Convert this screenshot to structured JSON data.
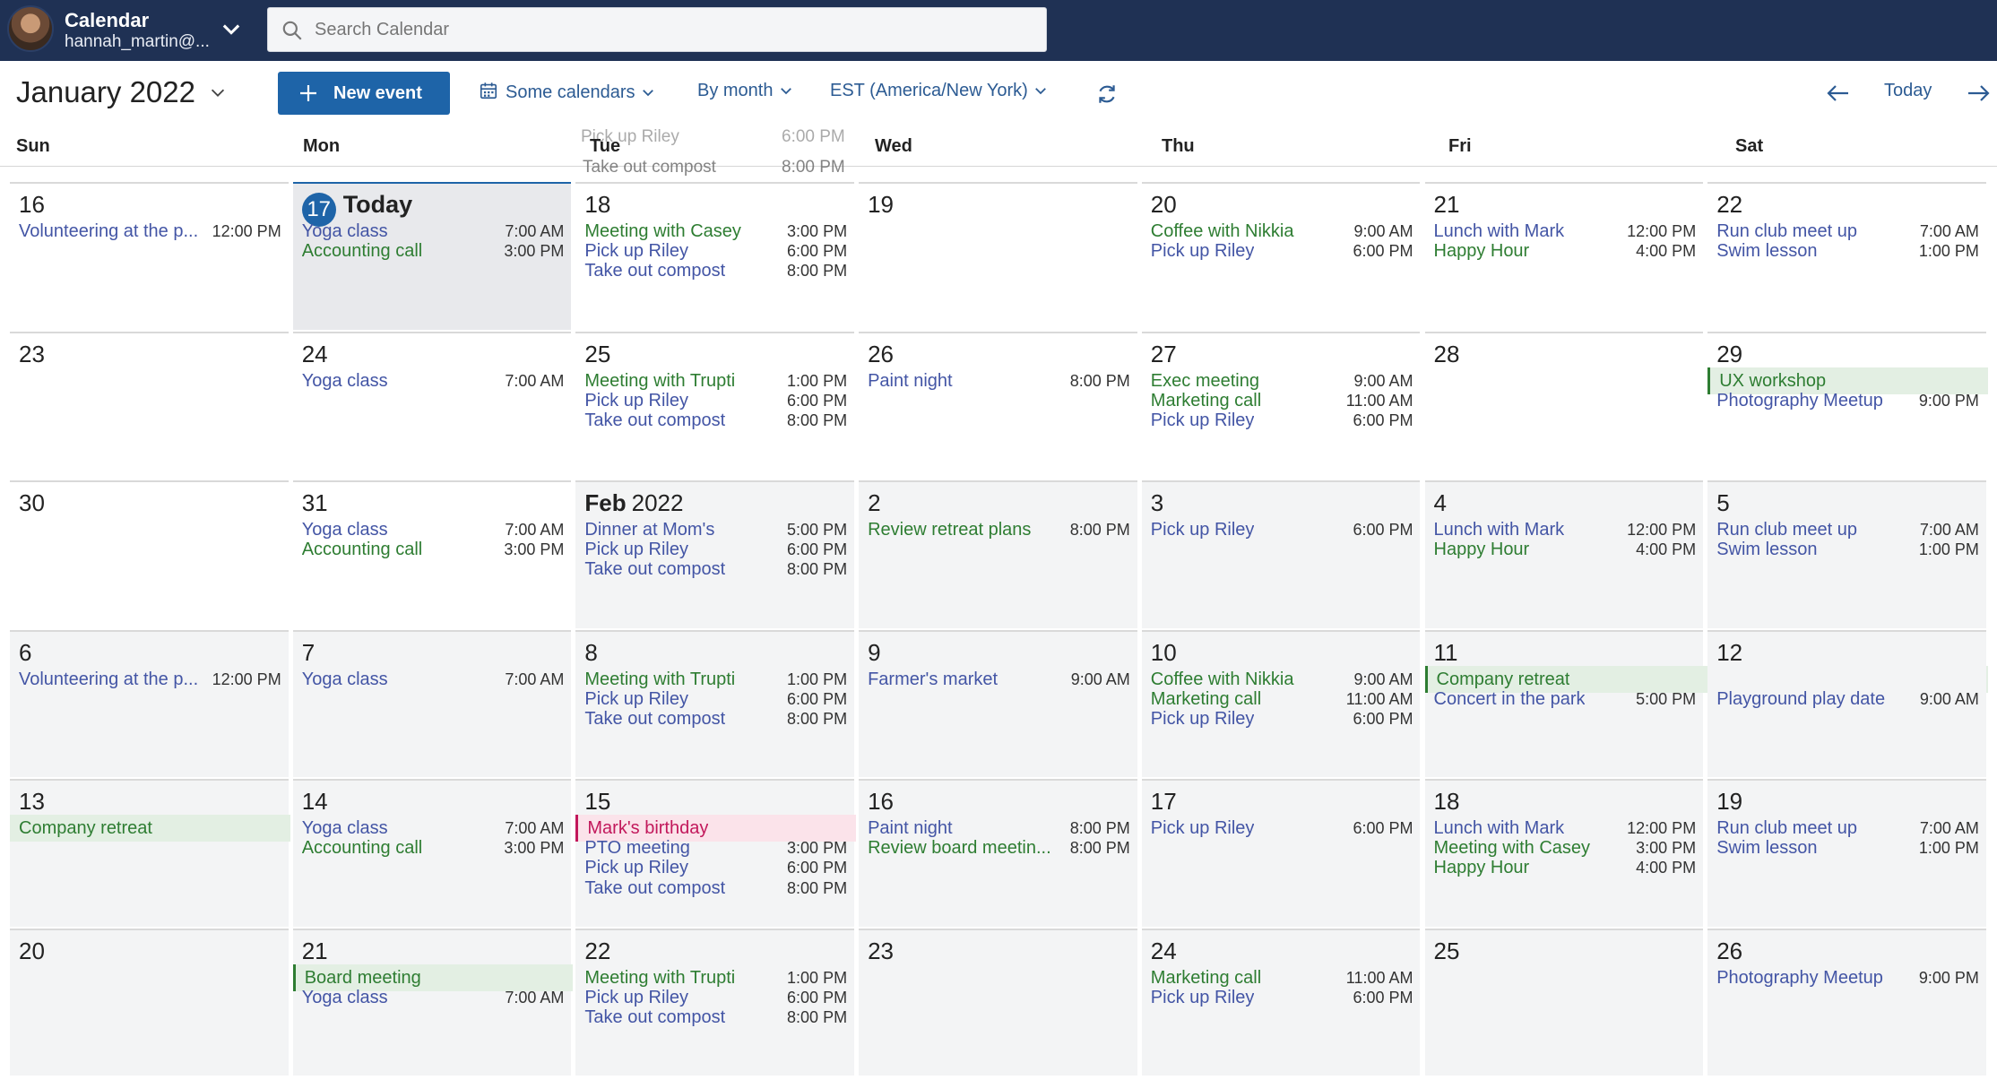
{
  "header": {
    "app_name": "Calendar",
    "user": "hannah_martin@...",
    "search_placeholder": "Search Calendar"
  },
  "toolbar": {
    "month_name": "January",
    "year": "2022",
    "new_event_label": "New event",
    "calendars_label": "Some calendars",
    "view_label": "By month",
    "timezone_label": "EST (America/New York)",
    "today_label": "Today"
  },
  "day_headers": [
    "Sun",
    "Mon",
    "Tue",
    "Wed",
    "Thu",
    "Fri",
    "Sat"
  ],
  "ghost_row": [
    {
      "title": "Pick up Riley",
      "time": "6:00 PM"
    },
    {
      "title": "Take out compost",
      "time": "8:00 PM"
    }
  ],
  "weeks": [
    [
      {
        "day": "16",
        "events": [
          {
            "title": "Volunteering at the p...",
            "time": "12:00 PM",
            "color": "blue"
          }
        ]
      },
      {
        "day": "17",
        "today": true,
        "today_label": "Today",
        "events": [
          {
            "title": "Yoga class",
            "time": "7:00 AM",
            "color": "blue"
          },
          {
            "title": "Accounting call",
            "time": "3:00 PM",
            "color": "green"
          }
        ]
      },
      {
        "day": "18",
        "events": [
          {
            "title": "Meeting with Casey",
            "time": "3:00 PM",
            "color": "green"
          },
          {
            "title": "Pick up Riley",
            "time": "6:00 PM",
            "color": "blue"
          },
          {
            "title": "Take out compost",
            "time": "8:00 PM",
            "color": "blue"
          }
        ]
      },
      {
        "day": "19",
        "events": []
      },
      {
        "day": "20",
        "events": [
          {
            "title": "Coffee with Nikkia",
            "time": "9:00 AM",
            "color": "green"
          },
          {
            "title": "Pick up Riley",
            "time": "6:00 PM",
            "color": "blue"
          }
        ]
      },
      {
        "day": "21",
        "events": [
          {
            "title": "Lunch with Mark",
            "time": "12:00 PM",
            "color": "blue"
          },
          {
            "title": "Happy Hour",
            "time": "4:00 PM",
            "color": "green"
          }
        ]
      },
      {
        "day": "22",
        "events": [
          {
            "title": "Run club meet up",
            "time": "7:00 AM",
            "color": "blue"
          },
          {
            "title": "Swim lesson",
            "time": "1:00 PM",
            "color": "blue"
          }
        ]
      }
    ],
    [
      {
        "day": "23",
        "events": []
      },
      {
        "day": "24",
        "events": [
          {
            "title": "Yoga class",
            "time": "7:00 AM",
            "color": "blue"
          }
        ]
      },
      {
        "day": "25",
        "events": [
          {
            "title": "Meeting with Trupti",
            "time": "1:00 PM",
            "color": "green"
          },
          {
            "title": "Pick up Riley",
            "time": "6:00 PM",
            "color": "blue"
          },
          {
            "title": "Take out compost",
            "time": "8:00 PM",
            "color": "blue"
          }
        ]
      },
      {
        "day": "26",
        "events": [
          {
            "title": "Paint night",
            "time": "8:00 PM",
            "color": "blue"
          }
        ]
      },
      {
        "day": "27",
        "events": [
          {
            "title": "Exec meeting",
            "time": "9:00 AM",
            "color": "green"
          },
          {
            "title": "Marketing call",
            "time": "11:00 AM",
            "color": "green"
          },
          {
            "title": "Pick up Riley",
            "time": "6:00 PM",
            "color": "blue"
          }
        ]
      },
      {
        "day": "28",
        "events": []
      },
      {
        "day": "29",
        "events": [
          {
            "title": "UX workshop",
            "time": "",
            "color": "green",
            "allday": true
          },
          {
            "title": "Photography Meetup",
            "time": "9:00 PM",
            "color": "blue"
          }
        ]
      }
    ],
    [
      {
        "day": "30",
        "events": []
      },
      {
        "day": "31",
        "events": [
          {
            "title": "Yoga class",
            "time": "7:00 AM",
            "color": "blue"
          },
          {
            "title": "Accounting call",
            "time": "3:00 PM",
            "color": "green"
          }
        ]
      },
      {
        "day": "Feb",
        "day_suffix": "2022",
        "gray": true,
        "events": [
          {
            "title": "Dinner at Mom's",
            "time": "5:00 PM",
            "color": "blue"
          },
          {
            "title": "Pick up Riley",
            "time": "6:00 PM",
            "color": "blue"
          },
          {
            "title": "Take out compost",
            "time": "8:00 PM",
            "color": "blue"
          }
        ]
      },
      {
        "day": "2",
        "gray": true,
        "events": [
          {
            "title": "Review retreat plans",
            "time": "8:00 PM",
            "color": "green"
          }
        ]
      },
      {
        "day": "3",
        "gray": true,
        "events": [
          {
            "title": "Pick up Riley",
            "time": "6:00 PM",
            "color": "blue"
          }
        ]
      },
      {
        "day": "4",
        "gray": true,
        "events": [
          {
            "title": "Lunch with Mark",
            "time": "12:00 PM",
            "color": "blue"
          },
          {
            "title": "Happy Hour",
            "time": "4:00 PM",
            "color": "green"
          }
        ]
      },
      {
        "day": "5",
        "gray": true,
        "events": [
          {
            "title": "Run club meet up",
            "time": "7:00 AM",
            "color": "blue"
          },
          {
            "title": "Swim lesson",
            "time": "1:00 PM",
            "color": "blue"
          }
        ]
      }
    ],
    [
      {
        "day": "6",
        "gray": true,
        "events": [
          {
            "title": "Volunteering at the p...",
            "time": "12:00 PM",
            "color": "blue"
          }
        ]
      },
      {
        "day": "7",
        "gray": true,
        "events": [
          {
            "title": "Yoga class",
            "time": "7:00 AM",
            "color": "blue"
          }
        ]
      },
      {
        "day": "8",
        "gray": true,
        "events": [
          {
            "title": "Meeting with Trupti",
            "time": "1:00 PM",
            "color": "green"
          },
          {
            "title": "Pick up Riley",
            "time": "6:00 PM",
            "color": "blue"
          },
          {
            "title": "Take out compost",
            "time": "8:00 PM",
            "color": "blue"
          }
        ]
      },
      {
        "day": "9",
        "gray": true,
        "events": [
          {
            "title": "Farmer's market",
            "time": "9:00 AM",
            "color": "blue"
          }
        ]
      },
      {
        "day": "10",
        "gray": true,
        "events": [
          {
            "title": "Coffee with Nikkia",
            "time": "9:00 AM",
            "color": "green"
          },
          {
            "title": "Marketing call",
            "time": "11:00 AM",
            "color": "green"
          },
          {
            "title": "Pick up Riley",
            "time": "6:00 PM",
            "color": "blue"
          }
        ]
      },
      {
        "day": "11",
        "gray": true,
        "events": [
          {
            "title": "Company retreat",
            "time": "",
            "color": "green",
            "allday": true,
            "span2": true
          },
          {
            "title": "Concert in the park",
            "time": "5:00 PM",
            "color": "blue"
          }
        ]
      },
      {
        "day": "12",
        "gray": true,
        "events": [
          {
            "title": "",
            "time": "",
            "color": "none",
            "spacer": true
          },
          {
            "title": "Playground play date",
            "time": "9:00 AM",
            "color": "blue"
          }
        ]
      }
    ],
    [
      {
        "day": "13",
        "gray": true,
        "events": [
          {
            "title": "Company retreat",
            "time": "",
            "color": "green",
            "allday": true,
            "noborder": true
          }
        ]
      },
      {
        "day": "14",
        "gray": true,
        "events": [
          {
            "title": "Yoga class",
            "time": "7:00 AM",
            "color": "blue"
          },
          {
            "title": "Accounting call",
            "time": "3:00 PM",
            "color": "green"
          }
        ]
      },
      {
        "day": "15",
        "gray": true,
        "events": [
          {
            "title": "Mark's birthday",
            "time": "",
            "color": "pink",
            "allday": true
          },
          {
            "title": "PTO meeting",
            "time": "3:00 PM",
            "color": "blue"
          },
          {
            "title": "Pick up Riley",
            "time": "6:00 PM",
            "color": "blue"
          },
          {
            "title": "Take out compost",
            "time": "8:00 PM",
            "color": "blue"
          }
        ]
      },
      {
        "day": "16",
        "gray": true,
        "events": [
          {
            "title": "Paint night",
            "time": "8:00 PM",
            "color": "blue"
          },
          {
            "title": "Review board meetin...",
            "time": "8:00 PM",
            "color": "green"
          }
        ]
      },
      {
        "day": "17",
        "gray": true,
        "events": [
          {
            "title": "Pick up Riley",
            "time": "6:00 PM",
            "color": "blue"
          }
        ]
      },
      {
        "day": "18",
        "gray": true,
        "events": [
          {
            "title": "Lunch with Mark",
            "time": "12:00 PM",
            "color": "blue"
          },
          {
            "title": "Meeting with Casey",
            "time": "3:00 PM",
            "color": "green"
          },
          {
            "title": "Happy Hour",
            "time": "4:00 PM",
            "color": "green"
          }
        ]
      },
      {
        "day": "19",
        "gray": true,
        "events": [
          {
            "title": "Run club meet up",
            "time": "7:00 AM",
            "color": "blue"
          },
          {
            "title": "Swim lesson",
            "time": "1:00 PM",
            "color": "blue"
          }
        ]
      }
    ],
    [
      {
        "day": "20",
        "gray": true,
        "events": []
      },
      {
        "day": "21",
        "gray": true,
        "events": [
          {
            "title": "Board meeting",
            "time": "",
            "color": "green",
            "allday": true
          },
          {
            "title": "Yoga class",
            "time": "7:00 AM",
            "color": "blue"
          }
        ]
      },
      {
        "day": "22",
        "gray": true,
        "events": [
          {
            "title": "Meeting with Trupti",
            "time": "1:00 PM",
            "color": "green"
          },
          {
            "title": "Pick up Riley",
            "time": "6:00 PM",
            "color": "blue"
          },
          {
            "title": "Take out compost",
            "time": "8:00 PM",
            "color": "blue"
          }
        ]
      },
      {
        "day": "23",
        "gray": true,
        "events": []
      },
      {
        "day": "24",
        "gray": true,
        "events": [
          {
            "title": "Marketing call",
            "time": "11:00 AM",
            "color": "green"
          },
          {
            "title": "Pick up Riley",
            "time": "6:00 PM",
            "color": "blue"
          }
        ]
      },
      {
        "day": "25",
        "gray": true,
        "events": []
      },
      {
        "day": "26",
        "gray": true,
        "events": [
          {
            "title": "Photography Meetup",
            "time": "9:00 PM",
            "color": "blue"
          }
        ]
      }
    ]
  ],
  "colors": {
    "topbar": "#1f3154",
    "accent": "#1e64a8",
    "green": "#2e7d32",
    "blue": "#4355a5",
    "pink": "#c2185b"
  }
}
